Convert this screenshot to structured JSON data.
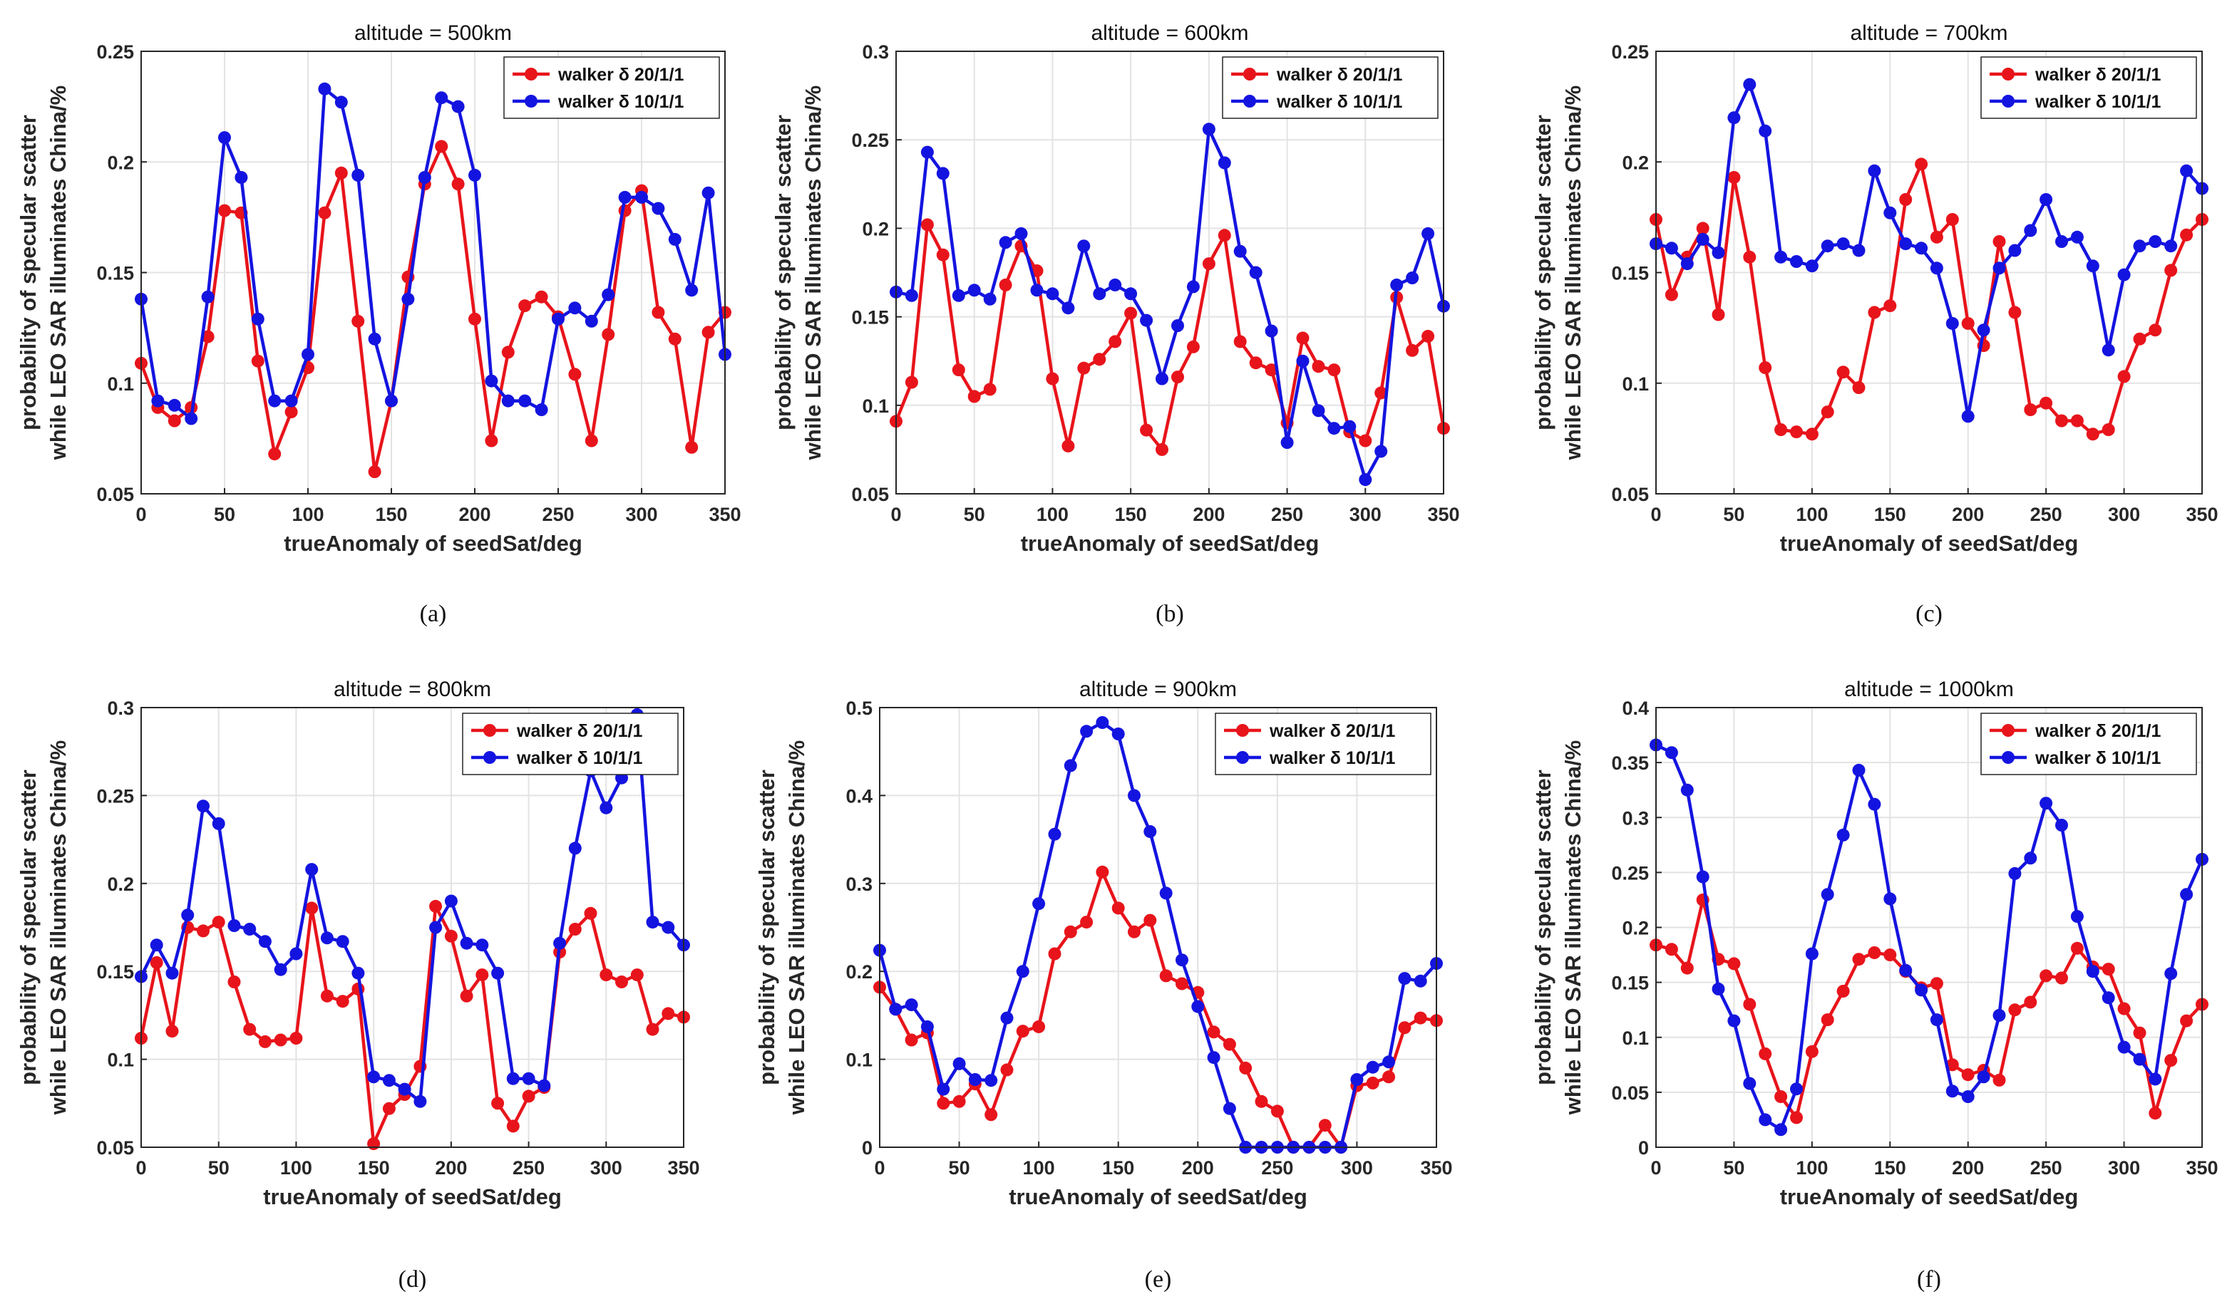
{
  "charts": [
    {
      "caption": "(a)",
      "title": "altitude = 500km",
      "xlabel": "trueAnomaly of seedSat/deg",
      "ylabel_line1": "probability of specular scatter",
      "ylabel_line2": "while LEO SAR illuminates China/%",
      "xticks": [
        "0",
        "50",
        "100",
        "150",
        "200",
        "250",
        "300",
        "350"
      ],
      "yticks": [
        "0.05",
        "0.1",
        "0.15",
        "0.2",
        "0.25"
      ],
      "legend": [
        "walker δ 20/1/1",
        "walker δ 10/1/1"
      ]
    },
    {
      "caption": "(b)",
      "title": "altitude = 600km",
      "xlabel": "trueAnomaly of seedSat/deg",
      "ylabel_line1": "probability of specular scatter",
      "ylabel_line2": "while LEO SAR illuminates China/%",
      "xticks": [
        "0",
        "50",
        "100",
        "150",
        "200",
        "250",
        "300",
        "350"
      ],
      "yticks": [
        "0.05",
        "0.1",
        "0.15",
        "0.2",
        "0.25",
        "0.3"
      ],
      "legend": [
        "walker δ 20/1/1",
        "walker δ 10/1/1"
      ]
    },
    {
      "caption": "(c)",
      "title": "altitude = 700km",
      "xlabel": "trueAnomaly of seedSat/deg",
      "ylabel_line1": "probability of specular scatter",
      "ylabel_line2": "while LEO SAR illuminates China/%",
      "xticks": [
        "0",
        "50",
        "100",
        "150",
        "200",
        "250",
        "300",
        "350"
      ],
      "yticks": [
        "0.05",
        "0.1",
        "0.15",
        "0.2",
        "0.25"
      ],
      "legend": [
        "walker δ 20/1/1",
        "walker δ 10/1/1"
      ]
    },
    {
      "caption": "(d)",
      "title": "altitude = 800km",
      "xlabel": "trueAnomaly of seedSat/deg",
      "ylabel_line1": "probability of specular scatter",
      "ylabel_line2": "while LEO SAR illuminates China/%",
      "xticks": [
        "0",
        "50",
        "100",
        "150",
        "200",
        "250",
        "300",
        "350"
      ],
      "yticks": [
        "0.05",
        "0.1",
        "0.15",
        "0.2",
        "0.25",
        "0.3"
      ],
      "legend": [
        "walker δ 20/1/1",
        "walker δ 10/1/1"
      ]
    },
    {
      "caption": "(e)",
      "title": "altitude = 900km",
      "xlabel": "trueAnomaly of seedSat/deg",
      "ylabel_line1": "probability of specular scatter",
      "ylabel_line2": "while LEO SAR illuminates China/%",
      "xticks": [
        "0",
        "50",
        "100",
        "150",
        "200",
        "250",
        "300",
        "350"
      ],
      "yticks": [
        "0",
        "0.1",
        "0.2",
        "0.3",
        "0.4",
        "0.5"
      ],
      "legend": [
        "walker δ 20/1/1",
        "walker δ 10/1/1"
      ]
    },
    {
      "caption": "(f)",
      "title": "altitude = 1000km",
      "xlabel": "trueAnomaly of seedSat/deg",
      "ylabel_line1": "probability of specular scatter",
      "ylabel_line2": "while LEO SAR illuminates China/%",
      "xticks": [
        "0",
        "50",
        "100",
        "150",
        "200",
        "250",
        "300",
        "350"
      ],
      "yticks": [
        "0",
        "0.05",
        "0.1",
        "0.15",
        "0.2",
        "0.25",
        "0.3",
        "0.35",
        "0.4"
      ],
      "legend": [
        "walker δ 20/1/1",
        "walker δ 10/1/1"
      ]
    }
  ],
  "colors": {
    "series1": "#e8141b",
    "series2": "#1414e0",
    "grid": "#e3e3e3",
    "axis": "#262626"
  },
  "chart_data": [
    {
      "type": "line",
      "title": "altitude = 500km",
      "xlabel": "trueAnomaly of seedSat/deg",
      "ylabel": "probability of specular scatter while LEO SAR illuminates China/%",
      "xlim": [
        0,
        350
      ],
      "ylim": [
        0.05,
        0.25
      ],
      "yticks": [
        0.05,
        0.1,
        0.15,
        0.2,
        0.25
      ],
      "grid": true,
      "legend_position": "top-right",
      "x": [
        0,
        10,
        20,
        30,
        40,
        50,
        60,
        70,
        80,
        90,
        100,
        110,
        120,
        130,
        140,
        150,
        160,
        170,
        180,
        190,
        200,
        210,
        220,
        230,
        240,
        250,
        260,
        270,
        280,
        290,
        300,
        310,
        320,
        330,
        340,
        350
      ],
      "series": [
        {
          "name": "walker δ 20/1/1",
          "values": [
            0.109,
            0.089,
            0.083,
            0.089,
            0.121,
            0.178,
            0.177,
            0.11,
            0.068,
            0.087,
            0.107,
            0.177,
            0.195,
            0.128,
            0.06,
            0.092,
            0.148,
            0.19,
            0.207,
            0.19,
            0.129,
            0.074,
            0.114,
            0.135,
            0.139,
            0.13,
            0.104,
            0.074,
            0.122,
            0.178,
            0.187,
            0.132,
            0.12,
            0.071,
            0.123,
            0.132
          ]
        },
        {
          "name": "walker δ 10/1/1",
          "values": [
            0.138,
            0.092,
            0.09,
            0.084,
            0.139,
            0.211,
            0.193,
            0.129,
            0.092,
            0.092,
            0.113,
            0.233,
            0.227,
            0.194,
            0.12,
            0.092,
            0.138,
            0.193,
            0.229,
            0.225,
            0.194,
            0.101,
            0.092,
            0.092,
            0.088,
            0.129,
            0.134,
            0.128,
            0.14,
            0.184,
            0.184,
            0.179,
            0.165,
            0.142,
            0.186,
            0.113
          ]
        }
      ]
    },
    {
      "type": "line",
      "title": "altitude = 600km",
      "xlabel": "trueAnomaly of seedSat/deg",
      "ylabel": "probability of specular scatter while LEO SAR illuminates China/%",
      "xlim": [
        0,
        350
      ],
      "ylim": [
        0.05,
        0.3
      ],
      "yticks": [
        0.05,
        0.1,
        0.15,
        0.2,
        0.25,
        0.3
      ],
      "grid": true,
      "legend_position": "top-right",
      "x": [
        0,
        10,
        20,
        30,
        40,
        50,
        60,
        70,
        80,
        90,
        100,
        110,
        120,
        130,
        140,
        150,
        160,
        170,
        180,
        190,
        200,
        210,
        220,
        230,
        240,
        250,
        260,
        270,
        280,
        290,
        300,
        310,
        320,
        330,
        340,
        350
      ],
      "series": [
        {
          "name": "walker δ 20/1/1",
          "values": [
            0.091,
            0.113,
            0.202,
            0.185,
            0.12,
            0.105,
            0.109,
            0.168,
            0.19,
            0.176,
            0.115,
            0.077,
            0.121,
            0.126,
            0.136,
            0.152,
            0.086,
            0.075,
            0.116,
            0.133,
            0.18,
            0.196,
            0.136,
            0.124,
            0.12,
            0.09,
            0.138,
            0.122,
            0.12,
            0.085,
            0.08,
            0.107,
            0.161,
            0.131,
            0.139,
            0.087
          ]
        },
        {
          "name": "walker δ 10/1/1",
          "values": [
            0.164,
            0.162,
            0.243,
            0.231,
            0.162,
            0.165,
            0.16,
            0.192,
            0.197,
            0.165,
            0.163,
            0.155,
            0.19,
            0.163,
            0.168,
            0.163,
            0.148,
            0.115,
            0.145,
            0.167,
            0.256,
            0.237,
            0.187,
            0.175,
            0.142,
            0.079,
            0.125,
            0.097,
            0.087,
            0.088,
            0.058,
            0.074,
            0.168,
            0.172,
            0.197,
            0.156
          ]
        }
      ]
    },
    {
      "type": "line",
      "title": "altitude = 700km",
      "xlabel": "trueAnomaly of seedSat/deg",
      "ylabel": "probability of specular scatter while LEO SAR illuminates China/%",
      "xlim": [
        0,
        350
      ],
      "ylim": [
        0.05,
        0.25
      ],
      "yticks": [
        0.05,
        0.1,
        0.15,
        0.2,
        0.25
      ],
      "grid": true,
      "legend_position": "top-right",
      "x": [
        0,
        10,
        20,
        30,
        40,
        50,
        60,
        70,
        80,
        90,
        100,
        110,
        120,
        130,
        140,
        150,
        160,
        170,
        180,
        190,
        200,
        210,
        220,
        230,
        240,
        250,
        260,
        270,
        280,
        290,
        300,
        310,
        320,
        330,
        340,
        350
      ],
      "series": [
        {
          "name": "walker δ 20/1/1",
          "values": [
            0.174,
            0.14,
            0.157,
            0.17,
            0.131,
            0.193,
            0.157,
            0.107,
            0.079,
            0.078,
            0.077,
            0.087,
            0.105,
            0.098,
            0.132,
            0.135,
            0.183,
            0.199,
            0.166,
            0.174,
            0.127,
            0.117,
            0.164,
            0.132,
            0.088,
            0.091,
            0.083,
            0.083,
            0.077,
            0.079,
            0.103,
            0.12,
            0.124,
            0.151,
            0.167,
            0.174
          ]
        },
        {
          "name": "walker δ 10/1/1",
          "values": [
            0.163,
            0.161,
            0.154,
            0.165,
            0.159,
            0.22,
            0.235,
            0.214,
            0.157,
            0.155,
            0.153,
            0.162,
            0.163,
            0.16,
            0.196,
            0.177,
            0.163,
            0.161,
            0.152,
            0.127,
            0.085,
            0.124,
            0.152,
            0.16,
            0.169,
            0.183,
            0.164,
            0.166,
            0.153,
            0.115,
            0.149,
            0.162,
            0.164,
            0.162,
            0.196,
            0.188
          ]
        }
      ]
    },
    {
      "type": "line",
      "title": "altitude = 800km",
      "xlabel": "trueAnomaly of seedSat/deg",
      "ylabel": "probability of specular scatter while LEO SAR illuminates China/%",
      "xlim": [
        0,
        350
      ],
      "ylim": [
        0.05,
        0.3
      ],
      "yticks": [
        0.05,
        0.1,
        0.15,
        0.2,
        0.25,
        0.3
      ],
      "grid": true,
      "legend_position": "top-right",
      "x": [
        0,
        10,
        20,
        30,
        40,
        50,
        60,
        70,
        80,
        90,
        100,
        110,
        120,
        130,
        140,
        150,
        160,
        170,
        180,
        190,
        200,
        210,
        220,
        230,
        240,
        250,
        260,
        270,
        280,
        290,
        300,
        310,
        320,
        330,
        340,
        350
      ],
      "series": [
        {
          "name": "walker δ 20/1/1",
          "values": [
            0.112,
            0.155,
            0.116,
            0.175,
            0.173,
            0.178,
            0.144,
            0.117,
            0.11,
            0.111,
            0.112,
            0.186,
            0.136,
            0.133,
            0.14,
            0.052,
            0.072,
            0.08,
            0.096,
            0.187,
            0.17,
            0.136,
            0.148,
            0.075,
            0.062,
            0.079,
            0.084,
            0.161,
            0.174,
            0.183,
            0.148,
            0.144,
            0.148,
            0.117,
            0.126,
            0.124
          ]
        },
        {
          "name": "walker δ 10/1/1",
          "values": [
            0.147,
            0.165,
            0.149,
            0.182,
            0.244,
            0.234,
            0.176,
            0.174,
            0.167,
            0.151,
            0.16,
            0.208,
            0.169,
            0.167,
            0.149,
            0.09,
            0.088,
            0.083,
            0.076,
            0.175,
            0.19,
            0.166,
            0.165,
            0.149,
            0.089,
            0.089,
            0.085,
            0.166,
            0.22,
            0.264,
            0.243,
            0.26,
            0.296,
            0.178,
            0.175,
            0.165
          ]
        }
      ]
    },
    {
      "type": "line",
      "title": "altitude = 900km",
      "xlabel": "trueAnomaly of seedSat/deg",
      "ylabel": "probability of specular scatter while LEO SAR illuminates China/%",
      "xlim": [
        0,
        350
      ],
      "ylim": [
        0,
        0.5
      ],
      "yticks": [
        0,
        0.1,
        0.2,
        0.3,
        0.4,
        0.5
      ],
      "grid": true,
      "legend_position": "top-right",
      "x": [
        0,
        10,
        20,
        30,
        40,
        50,
        60,
        70,
        80,
        90,
        100,
        110,
        120,
        130,
        140,
        150,
        160,
        170,
        180,
        190,
        200,
        210,
        220,
        230,
        240,
        250,
        260,
        270,
        280,
        290,
        300,
        310,
        320,
        330,
        340,
        350
      ],
      "series": [
        {
          "name": "walker δ 20/1/1",
          "values": [
            0.182,
            0.157,
            0.122,
            0.13,
            0.05,
            0.052,
            0.072,
            0.037,
            0.088,
            0.132,
            0.137,
            0.22,
            0.245,
            0.256,
            0.313,
            0.272,
            0.245,
            0.258,
            0.195,
            0.186,
            0.176,
            0.131,
            0.117,
            0.09,
            0.052,
            0.041,
            0.0,
            0.0,
            0.025,
            0.0,
            0.07,
            0.073,
            0.08,
            0.136,
            0.147,
            0.144
          ]
        },
        {
          "name": "walker δ 10/1/1",
          "values": [
            0.224,
            0.157,
            0.162,
            0.137,
            0.066,
            0.095,
            0.077,
            0.076,
            0.147,
            0.2,
            0.277,
            0.356,
            0.434,
            0.473,
            0.483,
            0.47,
            0.4,
            0.359,
            0.289,
            0.213,
            0.16,
            0.102,
            0.044,
            0.0,
            0.0,
            0.0,
            0.0,
            0.0,
            0.0,
            0.0,
            0.077,
            0.091,
            0.097,
            0.192,
            0.189,
            0.209
          ]
        }
      ]
    },
    {
      "type": "line",
      "title": "altitude = 1000km",
      "xlabel": "trueAnomaly of seedSat/deg",
      "ylabel": "probability of specular scatter while LEO SAR illuminates China/%",
      "xlim": [
        0,
        350
      ],
      "ylim": [
        0,
        0.4
      ],
      "yticks": [
        0,
        0.05,
        0.1,
        0.15,
        0.2,
        0.25,
        0.3,
        0.35,
        0.4
      ],
      "grid": true,
      "legend_position": "top-right",
      "x": [
        0,
        10,
        20,
        30,
        40,
        50,
        60,
        70,
        80,
        90,
        100,
        110,
        120,
        130,
        140,
        150,
        160,
        170,
        180,
        190,
        200,
        210,
        220,
        230,
        240,
        250,
        260,
        270,
        280,
        290,
        300,
        310,
        320,
        330,
        340,
        350
      ],
      "series": [
        {
          "name": "walker δ 20/1/1",
          "values": [
            0.184,
            0.18,
            0.163,
            0.225,
            0.171,
            0.167,
            0.13,
            0.085,
            0.046,
            0.027,
            0.087,
            0.116,
            0.142,
            0.171,
            0.177,
            0.175,
            0.16,
            0.145,
            0.149,
            0.075,
            0.066,
            0.07,
            0.061,
            0.125,
            0.132,
            0.156,
            0.154,
            0.181,
            0.164,
            0.162,
            0.126,
            0.104,
            0.031,
            0.079,
            0.115,
            0.13
          ]
        },
        {
          "name": "walker δ 10/1/1",
          "values": [
            0.366,
            0.359,
            0.325,
            0.246,
            0.144,
            0.115,
            0.058,
            0.025,
            0.016,
            0.053,
            0.176,
            0.23,
            0.284,
            0.343,
            0.312,
            0.226,
            0.161,
            0.143,
            0.116,
            0.051,
            0.046,
            0.064,
            0.12,
            0.249,
            0.263,
            0.313,
            0.293,
            0.21,
            0.16,
            0.136,
            0.091,
            0.08,
            0.062,
            0.158,
            0.23,
            0.262
          ]
        }
      ]
    }
  ]
}
